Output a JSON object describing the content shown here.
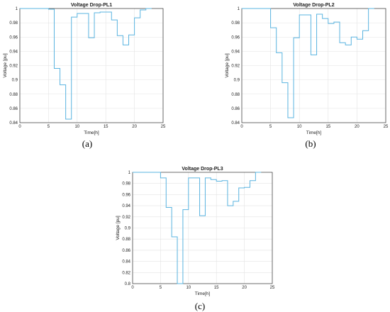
{
  "chart_data": [
    {
      "type": "line",
      "panel_label": "(a)",
      "title": "Voltage Drop-PL1",
      "xlabel": "Time[h]",
      "ylabel": "Voltage [pu]",
      "xlim": [
        0,
        25
      ],
      "ylim": [
        0.84,
        1.0
      ],
      "xticks": [
        "0",
        "5",
        "10",
        "15",
        "20",
        "25"
      ],
      "yticks": [
        "0.84",
        "0.86",
        "0.88",
        "0.9",
        "0.92",
        "0.94",
        "0.96",
        "0.98",
        "1"
      ],
      "grid": true,
      "line_color": "#5ab4e0",
      "x": [
        0,
        1,
        2,
        3,
        4,
        5,
        6,
        7,
        8,
        9,
        10,
        11,
        12,
        13,
        14,
        15,
        16,
        17,
        18,
        19,
        20,
        21,
        22
      ],
      "values": [
        1.0,
        1.0,
        1.0,
        1.0,
        1.0,
        0.999,
        0.916,
        0.893,
        0.845,
        0.988,
        0.993,
        0.993,
        0.959,
        0.994,
        0.995,
        0.995,
        0.984,
        0.962,
        0.949,
        0.963,
        0.987,
        0.998,
        1.0
      ]
    },
    {
      "type": "line",
      "panel_label": "(b)",
      "title": "Voltage Drop-PL2",
      "xlabel": "Time[h]",
      "ylabel": "Voltage [pu]",
      "xlim": [
        0,
        25
      ],
      "ylim": [
        0.84,
        1.0
      ],
      "xticks": [
        "0",
        "5",
        "10",
        "15",
        "20",
        "25"
      ],
      "yticks": [
        "0.84",
        "0.86",
        "0.88",
        "0.9",
        "0.92",
        "0.94",
        "0.96",
        "0.98",
        "1"
      ],
      "grid": true,
      "line_color": "#5ab4e0",
      "x": [
        0,
        1,
        2,
        3,
        4,
        5,
        6,
        7,
        8,
        9,
        10,
        11,
        12,
        13,
        14,
        15,
        16,
        17,
        18,
        19,
        20,
        21,
        22
      ],
      "values": [
        1.0,
        1.0,
        1.0,
        1.0,
        1.0,
        0.973,
        0.938,
        0.896,
        0.847,
        0.959,
        0.991,
        0.991,
        0.935,
        0.992,
        0.986,
        0.979,
        0.981,
        0.952,
        0.949,
        0.96,
        0.957,
        0.969,
        1.0
      ]
    },
    {
      "type": "line",
      "panel_label": "(c)",
      "title": "Voltage Drop-PL3",
      "xlabel": "Time[h]",
      "ylabel": "Voltage [pu]",
      "xlim": [
        0,
        25
      ],
      "ylim": [
        0.8,
        1.0
      ],
      "xticks": [
        "0",
        "5",
        "10",
        "15",
        "20",
        "25"
      ],
      "yticks": [
        "0.8",
        "0.82",
        "0.84",
        "0.86",
        "0.88",
        "0.9",
        "0.92",
        "0.94",
        "0.96",
        "0.98",
        "1"
      ],
      "grid": true,
      "line_color": "#5ab4e0",
      "x": [
        0,
        1,
        2,
        3,
        4,
        5,
        6,
        7,
        8,
        9,
        10,
        11,
        12,
        13,
        14,
        15,
        16,
        17,
        18,
        19,
        20,
        21,
        22
      ],
      "values": [
        1.0,
        1.0,
        1.0,
        1.0,
        1.0,
        0.99,
        0.937,
        0.884,
        0.8,
        0.933,
        0.99,
        0.99,
        0.922,
        0.99,
        0.987,
        0.984,
        0.985,
        0.94,
        0.948,
        0.972,
        0.973,
        0.985,
        1.0
      ]
    }
  ]
}
